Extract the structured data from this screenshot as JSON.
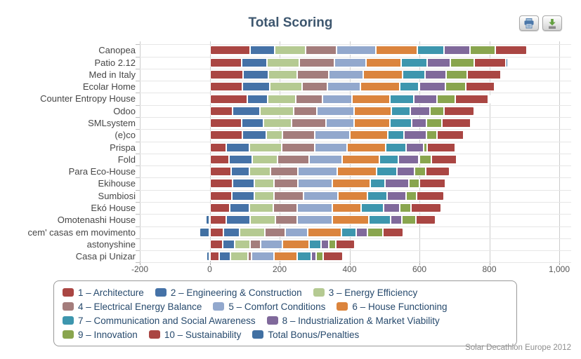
{
  "title": "Total Scoring",
  "credits": "Solar Decathlon Europe 2012",
  "toolbar": {
    "buttons": [
      {
        "icon": "printer-icon"
      },
      {
        "icon": "download-icon"
      }
    ]
  },
  "chart_data": {
    "type": "bar",
    "stacked": true,
    "orientation": "horizontal",
    "title": "Total Scoring",
    "grid": true,
    "legend_position": "bottom",
    "xlim": [
      -200,
      1000
    ],
    "x_tick_values": [
      -200,
      0,
      200,
      400,
      600,
      800,
      1000
    ],
    "x_ticks": [
      "-200",
      "0",
      "200",
      "400",
      "600",
      "800",
      "1,000"
    ],
    "categories": [
      "Canopea",
      "Patio 2.12",
      "Med in Italy",
      "Ecolar Home",
      "Counter Entropy House",
      "Odoo",
      "SMLsystem",
      "(e)co",
      "Prispa",
      "Fold",
      "Para Eco-House",
      "Ekihouse",
      "Sumbiosi",
      "Ekó House",
      "Omotenashi House",
      "cem' casas em movimento",
      "astonyshine",
      "Casa pi Unizar"
    ],
    "series": [
      {
        "name": "1 – Architecture",
        "color": "#AA4643",
        "values": [
          115,
          92,
          95,
          94,
          107,
          65,
          92,
          94,
          47,
          56,
          62,
          66,
          64,
          58,
          48,
          39,
          38,
          28
        ]
      },
      {
        "name": "2 – Engineering & Construction",
        "color": "#4572A7",
        "values": [
          70,
          72,
          72,
          78,
          58,
          79,
          62,
          67,
          66,
          65,
          51,
          61,
          63,
          55,
          68,
          47,
          34,
          32
        ]
      },
      {
        "name": "3 – Energy Efficiency",
        "color": "#B5CA92",
        "values": [
          90,
          93,
          84,
          93,
          82,
          96,
          80,
          48,
          93,
          72,
          60,
          56,
          56,
          68,
          71,
          71,
          43,
          49
        ]
      },
      {
        "name": "4 – Electrical Energy Balance",
        "color": "#A47D7C",
        "values": [
          88,
          100,
          90,
          72,
          76,
          67,
          98,
          91,
          94,
          91,
          80,
          70,
          86,
          70,
          64,
          60,
          30,
          10
        ]
      },
      {
        "name": "5 – Comfort Conditions",
        "color": "#92A8CD",
        "values": [
          113,
          90,
          98,
          95,
          84,
          107,
          82,
          100,
          93,
          94,
          111,
          97,
          97,
          99,
          99,
          64,
          64,
          64
        ]
      },
      {
        "name": "6 – House Functioning",
        "color": "#DB843D",
        "values": [
          117,
          100,
          113,
          112,
          109,
          106,
          102,
          109,
          110,
          107,
          114,
          110,
          86,
          84,
          106,
          95,
          75,
          68
        ]
      },
      {
        "name": "7 – Communication and Social Awareness",
        "color": "#3D96AE",
        "values": [
          77,
          76,
          65,
          55,
          67,
          54,
          61,
          46,
          59,
          54,
          57,
          41,
          55,
          63,
          61,
          44,
          34,
          39
        ]
      },
      {
        "name": "8 – Industrialization & Market Viability",
        "color": "#80699B",
        "values": [
          74,
          66,
          60,
          76,
          67,
          56,
          44,
          66,
          51,
          60,
          50,
          68,
          54,
          46,
          32,
          32,
          22,
          14
        ]
      },
      {
        "name": "9 – Innovation",
        "color": "#89A54E",
        "values": [
          74,
          68,
          60,
          57,
          52,
          40,
          43,
          30,
          10,
          36,
          34,
          32,
          30,
          32,
          40,
          43,
          20,
          20
        ]
      },
      {
        "name": "10 – Sustainability",
        "color": "#AA4643",
        "values": [
          90,
          90,
          96,
          83,
          96,
          87,
          83,
          75,
          80,
          71,
          67,
          73,
          80,
          88,
          58,
          58,
          56,
          56
        ]
      },
      {
        "name": "Total Bonus/Penalties",
        "color": "#4170A2",
        "values": [
          0,
          6,
          5,
          5,
          4,
          0,
          3,
          3,
          3,
          4,
          0,
          4,
          0,
          0,
          -12,
          -30,
          0,
          -10
        ]
      }
    ],
    "legend_rows": [
      [
        0,
        1,
        2
      ],
      [
        3,
        4,
        5
      ],
      [
        6,
        7
      ],
      [
        8,
        9,
        10
      ]
    ],
    "totals": [
      908,
      853,
      838,
      820,
      802,
      757,
      750,
      729,
      706,
      710,
      686,
      678,
      671,
      663,
      635,
      523,
      416,
      370
    ]
  }
}
